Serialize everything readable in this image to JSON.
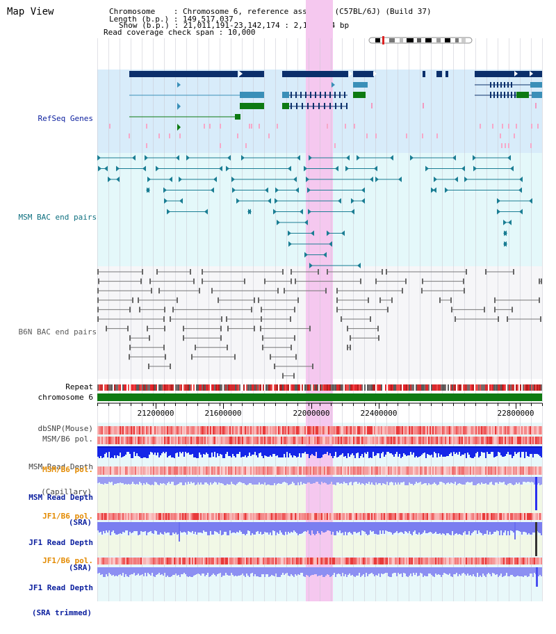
{
  "view": {
    "title": "Map View",
    "info": [
      "Chromosome    : Chromosome 6, reference assembly (C57BL/6J) (Build 37)",
      "Length (b.p.) : 149,517,037",
      "Show (b.p.) : 21,011,191-23,142,174 : 2,130,984 bp",
      "Read coverage check span : 10,000"
    ]
  },
  "tracks": {
    "refseq": {
      "label": "RefSeq Genes",
      "color": "#0a1e9e"
    },
    "msm_bac": {
      "label": "MSM BAC end pairs",
      "color": "#0d6f7f"
    },
    "b6n_bac": {
      "label": "B6N BAC end pairs",
      "color": "#5a5a5a"
    },
    "repeat": {
      "label": "Repeat"
    },
    "chromosome": {
      "label": "chromosome 6"
    },
    "dbsnp": {
      "label": "dbSNP(Mouse)"
    },
    "msm_b6_pol_1": {
      "label": "MSM/B6 pol."
    },
    "msm_read_depth_cap": {
      "label_line1": "MSM Read Depth",
      "label_line2": "(Capillary)"
    },
    "msm_b6_pol_2": {
      "label": "MSM/B6 pol.",
      "color": "#e38a00"
    },
    "msm_read_depth_sra": {
      "label_line1": "MSM Read Depth",
      "label_line2": "(SRA)",
      "color": "#0a1e9e"
    },
    "jf1_b6_pol_1": {
      "label": "JF1/B6 pol.",
      "color": "#e38a00"
    },
    "jf1_read_depth_sra": {
      "label_line1": "JF1 Read Depth",
      "label_line2": "(SRA)",
      "color": "#0a1e9e"
    },
    "jf1_b6_pol_2": {
      "label": "JF1/B6 pol.",
      "color": "#e38a00"
    },
    "jf1_read_depth_trim": {
      "label_line1": "JF1 Read Depth",
      "label_line2": "(SRA trimmed)",
      "color": "#0a1e9e"
    }
  },
  "axis": {
    "ticks": [
      "21200000",
      "21600000",
      "22000000",
      "22400000",
      "22800000"
    ]
  },
  "colors": {
    "highlight": "#f5c8ef",
    "refseq_bg": "#d8ecfa",
    "msm_bg": "#e4f8fa",
    "b6n_bg": "#f6f6f8",
    "gene_dark": "#0b2f6b",
    "gene_mid": "#3a8fb8",
    "gene_green": "#0d7a12",
    "chromosome": "#0f7a12"
  }
}
